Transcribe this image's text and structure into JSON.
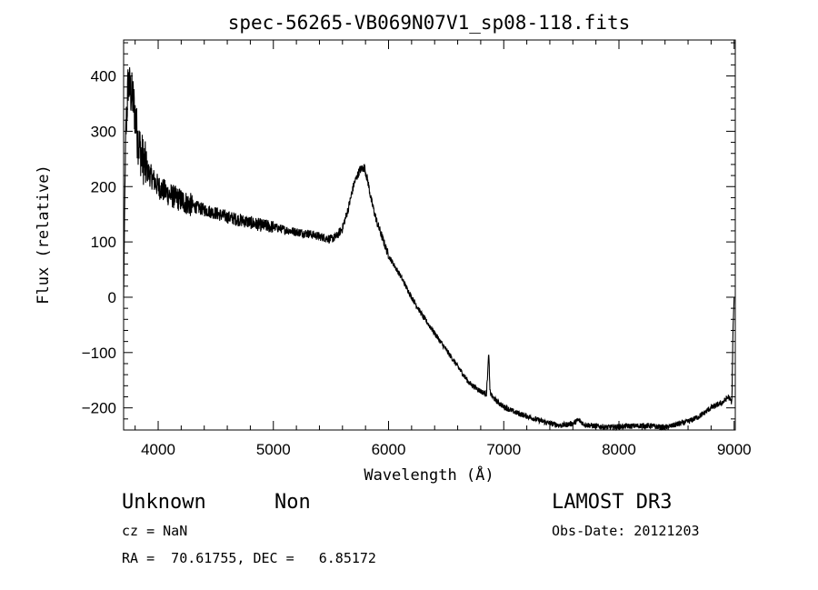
{
  "chart_data": {
    "type": "line",
    "title": "spec-56265-VB069N07V1_sp08-118.fits",
    "xlabel": "Wavelength (Å)",
    "ylabel": "Flux (relative)",
    "xlim": [
      3700,
      9010
    ],
    "ylim": [
      -240,
      465
    ],
    "xticks": [
      4000,
      5000,
      6000,
      7000,
      8000,
      9000
    ],
    "yticks": [
      -200,
      -100,
      0,
      100,
      200,
      300,
      400
    ],
    "grid": false,
    "series": [
      {
        "x": [
          3700,
          3710,
          3720,
          3740,
          3760,
          3780,
          3800,
          3820,
          3850,
          3900,
          3950,
          4000,
          4100,
          4200,
          4300,
          4400,
          4500,
          4600,
          4700,
          4800,
          4900,
          5000,
          5100,
          5200,
          5300,
          5400,
          5500,
          5550,
          5600,
          5650,
          5700,
          5750,
          5790,
          5820,
          5850,
          5900,
          5950,
          6000,
          6100,
          6200,
          6300,
          6400,
          6500,
          6600,
          6700,
          6800,
          6850,
          6870,
          6880,
          6900,
          6950,
          7000,
          7100,
          7200,
          7300,
          7400,
          7500,
          7600,
          7650,
          7700,
          7800,
          7900,
          8000,
          8100,
          8200,
          8300,
          8400,
          8500,
          8600,
          8700,
          8800,
          8900,
          8950,
          8980,
          8990,
          9000
        ],
        "y": [
          0,
          180,
          300,
          390,
          370,
          360,
          330,
          290,
          260,
          230,
          215,
          200,
          185,
          175,
          165,
          158,
          152,
          145,
          140,
          135,
          130,
          127,
          122,
          118,
          115,
          110,
          105,
          110,
          125,
          160,
          205,
          230,
          235,
          210,
          175,
          135,
          105,
          75,
          40,
          0,
          -35,
          -65,
          -95,
          -125,
          -155,
          -170,
          -175,
          -100,
          -170,
          -180,
          -190,
          -198,
          -208,
          -215,
          -222,
          -228,
          -232,
          -228,
          -222,
          -230,
          -233,
          -235,
          -234,
          -233,
          -232,
          -233,
          -236,
          -230,
          -225,
          -215,
          -200,
          -190,
          -180,
          -190,
          -60,
          0
        ]
      }
    ]
  },
  "annotations": {
    "object_class": "Unknown",
    "subclass": "Non",
    "cz": "cz = NaN",
    "radec": "RA =  70.61755, DEC =   6.85172",
    "survey": "LAMOST DR3",
    "obs_date": "Obs-Date: 20121203"
  }
}
